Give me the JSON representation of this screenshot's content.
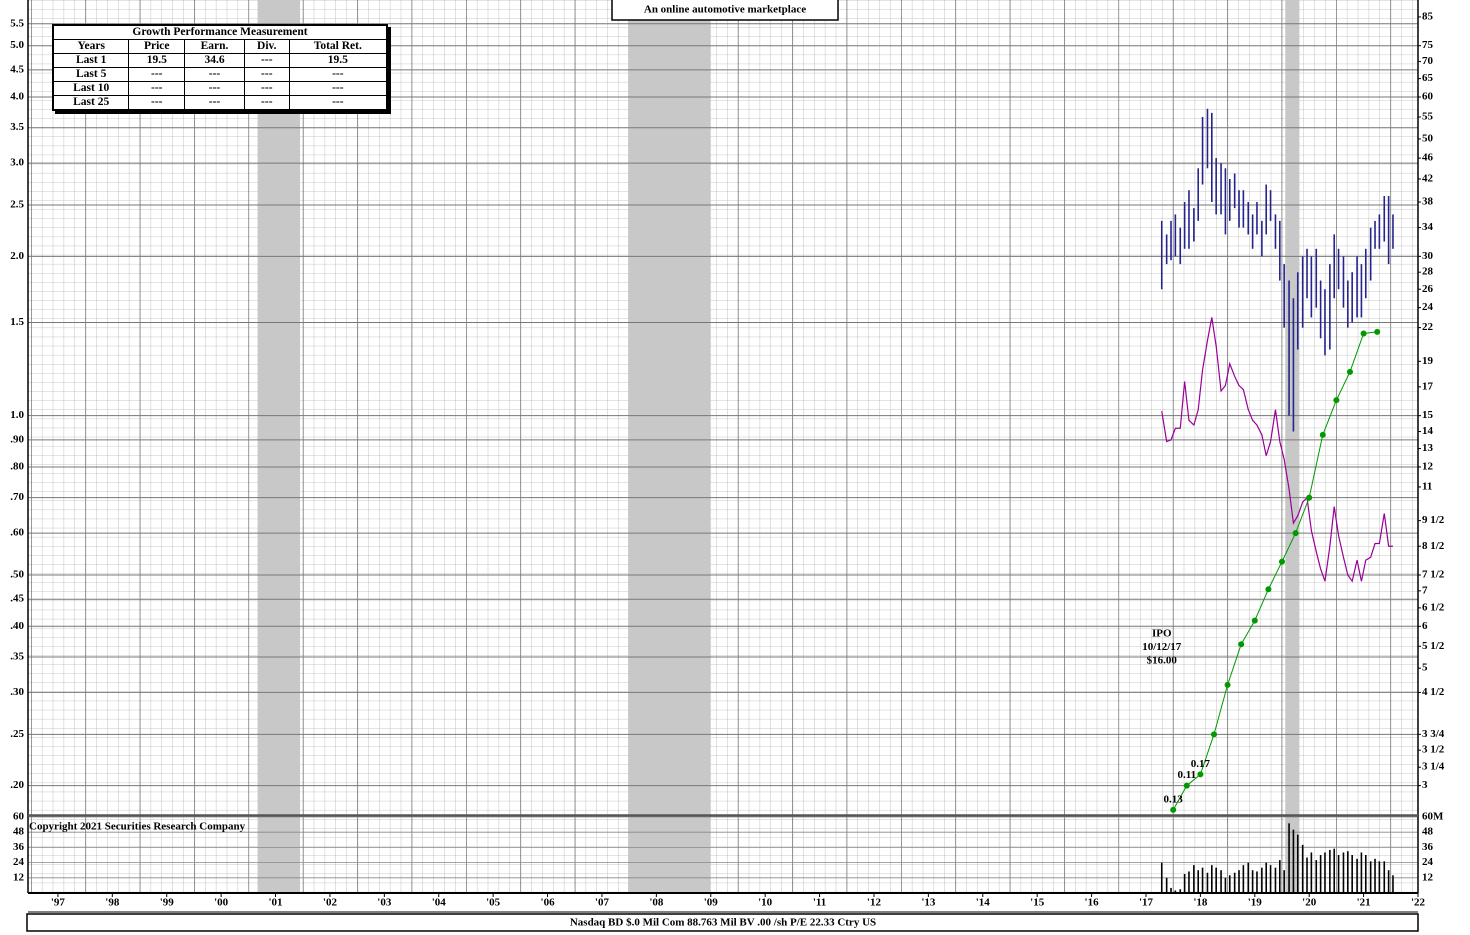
{
  "chart_data": {
    "type": "stock",
    "subtitle": "An online automotive marketplace",
    "copyright": "Copyright 2021 Securities Research Company",
    "footer": "Nasdaq BD  $.0 Mil Com 88.763 Mil BV .00 /sh  P/E 22.33 Ctry US",
    "ipo_note": [
      "IPO",
      "10/12/17",
      "$16.00"
    ],
    "log_scale": true,
    "grid": true,
    "xlim": [
      1996.95,
      2022.5
    ],
    "xticks": [
      {
        "value": 1997.5,
        "label": "'97"
      },
      {
        "value": 1998.5,
        "label": "'98"
      },
      {
        "value": 1999.5,
        "label": "'99"
      },
      {
        "value": 2000.5,
        "label": "'00"
      },
      {
        "value": 2001.5,
        "label": "'01"
      },
      {
        "value": 2002.5,
        "label": "'02"
      },
      {
        "value": 2003.5,
        "label": "'03"
      },
      {
        "value": 2004.5,
        "label": "'04"
      },
      {
        "value": 2005.5,
        "label": "'05"
      },
      {
        "value": 2006.5,
        "label": "'06"
      },
      {
        "value": 2007.5,
        "label": "'07"
      },
      {
        "value": 2008.5,
        "label": "'08"
      },
      {
        "value": 2009.5,
        "label": "'09"
      },
      {
        "value": 2010.5,
        "label": "'10"
      },
      {
        "value": 2011.5,
        "label": "'11"
      },
      {
        "value": 2012.5,
        "label": "'12"
      },
      {
        "value": 2013.5,
        "label": "'13"
      },
      {
        "value": 2014.5,
        "label": "'14"
      },
      {
        "value": 2015.5,
        "label": "'15"
      },
      {
        "value": 2016.5,
        "label": "'16"
      },
      {
        "value": 2017.5,
        "label": "'17"
      },
      {
        "value": 2018.5,
        "label": "'18"
      },
      {
        "value": 2019.5,
        "label": "'19"
      },
      {
        "value": 2020.5,
        "label": "'20"
      },
      {
        "value": 2021.5,
        "label": "'21"
      },
      {
        "value": 2022.5,
        "label": "'22"
      }
    ],
    "ylim": [
      0.176,
      6.1
    ],
    "yticks": [
      5.5,
      {
        "value": 5,
        "label": "5.0"
      },
      4.5,
      {
        "value": 4,
        "label": "4.0"
      },
      3.5,
      {
        "value": 3,
        "label": "3.0"
      },
      2.5,
      {
        "value": 2,
        "label": "2.0"
      },
      1.5,
      {
        "value": 1,
        "label": "1.0"
      },
      {
        "value": 0.9,
        "label": ".90"
      },
      {
        "value": 0.8,
        "label": ".80"
      },
      {
        "value": 0.7,
        "label": ".70"
      },
      {
        "value": 0.6,
        "label": ".60"
      },
      {
        "value": 0.5,
        "label": ".50"
      },
      {
        "value": 0.45,
        "label": ".45"
      },
      {
        "value": 0.4,
        "label": ".40"
      },
      {
        "value": 0.35,
        "label": ".35"
      },
      {
        "value": 0.3,
        "label": ".30"
      },
      {
        "value": 0.25,
        "label": ".25"
      },
      {
        "value": 0.2,
        "label": ".20"
      }
    ],
    "y2lim": [
      2.64,
      91.5
    ],
    "y2ticks": [
      85,
      75,
      70,
      65,
      60,
      55,
      50,
      46,
      42,
      38,
      34,
      30,
      28,
      26,
      24,
      22,
      19,
      17,
      15,
      14,
      13,
      12,
      11,
      {
        "value": 9.5,
        "label": "9 1/2"
      },
      {
        "value": 8.5,
        "label": "8 1/2"
      },
      {
        "value": 7.5,
        "label": "7 1/2"
      },
      7,
      {
        "value": 6.5,
        "label": "6 1/2"
      },
      6,
      {
        "value": 5.5,
        "label": "5 1/2"
      },
      5,
      {
        "value": 4.5,
        "label": "4 1/2"
      },
      {
        "value": 3.75,
        "label": "3 3/4"
      },
      {
        "value": 3.5,
        "label": "3 1/2"
      },
      {
        "value": 3.25,
        "label": "3 1/4"
      },
      3
    ],
    "recessions": [
      [
        2001.17,
        2001.95
      ],
      [
        2007.98,
        2009.5
      ],
      [
        2020.06,
        2020.32
      ]
    ],
    "recession_color": "#c8c8c8",
    "x": [
      2017.79,
      2017.88,
      2017.96,
      2018.04,
      2018.13,
      2018.21,
      2018.29,
      2018.38,
      2018.46,
      2018.54,
      2018.63,
      2018.71,
      2018.79,
      2018.88,
      2018.96,
      2019.04,
      2019.13,
      2019.21,
      2019.29,
      2019.38,
      2019.46,
      2019.54,
      2019.63,
      2019.71,
      2019.79,
      2019.88,
      2019.96,
      2020.04,
      2020.13,
      2020.21,
      2020.29,
      2020.38,
      2020.46,
      2020.54,
      2020.63,
      2020.71,
      2020.79,
      2020.88,
      2020.96,
      2021.04,
      2021.13,
      2021.21,
      2021.29,
      2021.38,
      2021.46,
      2021.54,
      2021.63,
      2021.71,
      2021.79,
      2021.88,
      2021.96,
      2022.04
    ],
    "price": {
      "axis": "y2",
      "color": "#24248c",
      "high": [
        35,
        33,
        35,
        36,
        34,
        38,
        40,
        37,
        44,
        55,
        57,
        56,
        46,
        45,
        44,
        42,
        43,
        40,
        40,
        38,
        36,
        38,
        35,
        41,
        40,
        36,
        35,
        29,
        27,
        25,
        28,
        30,
        31,
        30,
        31,
        27,
        26,
        29,
        33,
        31,
        30,
        27,
        28,
        30,
        29,
        31,
        34,
        35,
        36,
        39,
        39,
        36
      ],
      "low": [
        26,
        29,
        29.5,
        30,
        29,
        31,
        31,
        32,
        35,
        41,
        44,
        38,
        36,
        36,
        33,
        35,
        37,
        34,
        34,
        33,
        31,
        33,
        30,
        33,
        35,
        31,
        27,
        22,
        15,
        14,
        20,
        22,
        25,
        23,
        24,
        21,
        19.5,
        20,
        25,
        26,
        24,
        22,
        22.5,
        23,
        23,
        25,
        27,
        31,
        31,
        32,
        29,
        31
      ]
    },
    "relative_strength": {
      "axis": "y2",
      "color": "#990099",
      "values": [
        15.3,
        13.4,
        13.5,
        14.2,
        14.2,
        17.4,
        14.7,
        14.4,
        15.4,
        18.3,
        20.8,
        23,
        20.3,
        16.7,
        17.1,
        18.8,
        17.8,
        17.1,
        16.8,
        15.4,
        14.7,
        14.4,
        13.8,
        12.6,
        13.4,
        15.4,
        13.4,
        12.4,
        10.9,
        9.4,
        9.7,
        10.3,
        10.5,
        9.1,
        8.3,
        7.7,
        7.3,
        8.5,
        10.1,
        8.9,
        8.1,
        7.5,
        7.3,
        8,
        7.3,
        8,
        8.1,
        8.6,
        8.6,
        9.8,
        8.5,
        8.5
      ]
    },
    "earnings": {
      "color": "#009900",
      "x": [
        2018,
        2018.25,
        2018.5,
        2018.75,
        2019,
        2019.25,
        2019.5,
        2019.75,
        2020,
        2020.25,
        2020.5,
        2020.75,
        2021,
        2021.25,
        2021.5,
        2021.75
      ],
      "values": [
        0.18,
        0.2,
        0.21,
        0.25,
        0.31,
        0.37,
        0.41,
        0.47,
        0.53,
        0.6,
        0.7,
        0.92,
        1.07,
        1.21,
        1.43,
        1.44
      ],
      "annotations": [
        "0.13",
        "0.11",
        "0.17"
      ]
    },
    "volume": {
      "color": "#000000",
      "values": [
        24,
        12,
        4,
        2,
        3,
        15,
        17,
        22,
        18,
        20,
        16,
        22,
        20,
        18,
        12,
        14,
        16,
        18,
        22,
        24,
        18,
        17,
        20,
        24,
        22,
        20,
        26,
        18,
        55,
        50,
        46,
        38,
        28,
        32,
        26,
        30,
        32,
        34,
        35,
        30,
        32,
        33,
        30,
        27,
        32,
        30,
        25,
        27,
        25,
        25,
        18,
        14
      ],
      "ylim": [
        0,
        60
      ],
      "yticks": [
        60,
        48,
        36,
        24,
        12
      ],
      "y2ticks": [
        {
          "value": 60,
          "label": "60M"
        },
        48,
        36,
        24,
        12
      ]
    }
  },
  "performance_table": {
    "title": "Growth Performance Measurement",
    "columns": [
      "Years",
      "Price",
      "Earn.",
      "Div.",
      "Total Ret."
    ],
    "rows": [
      [
        "Last 1",
        "19.5",
        "34.6",
        "---",
        "19.5"
      ],
      [
        "Last 5",
        "---",
        "---",
        "---",
        "---"
      ],
      [
        "Last 10",
        "---",
        "---",
        "---",
        "---"
      ],
      [
        "Last 25",
        "---",
        "---",
        "---",
        "---"
      ]
    ]
  }
}
